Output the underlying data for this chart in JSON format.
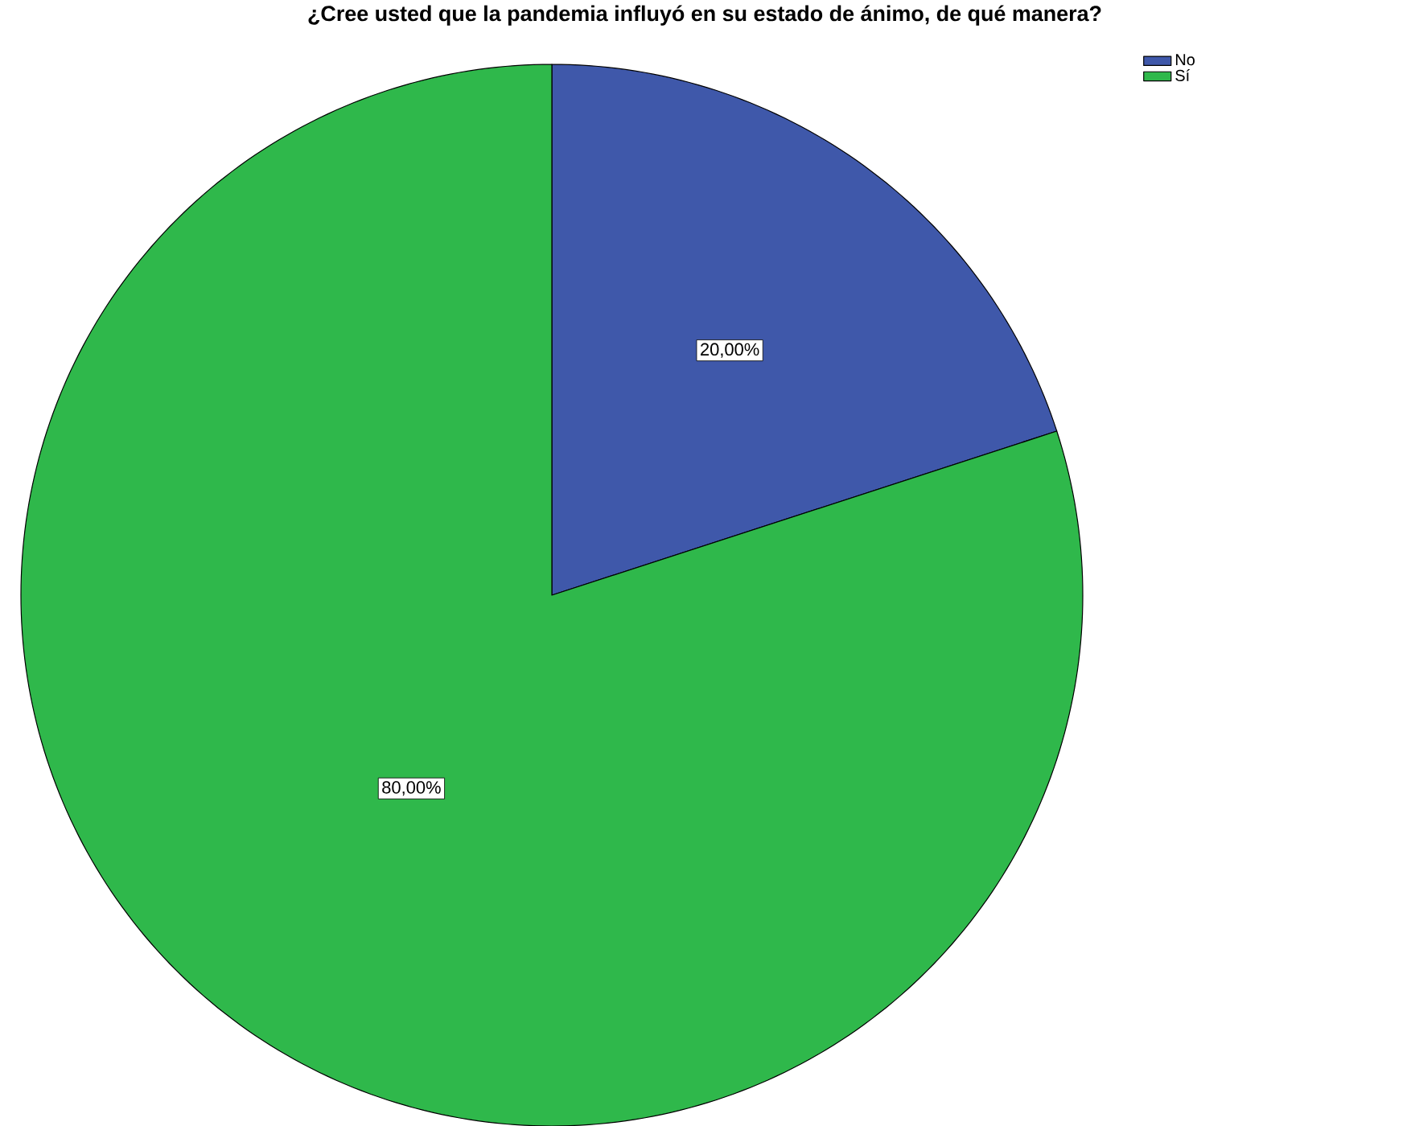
{
  "chart_data": {
    "type": "pie",
    "title": "¿Cree usted que la pandemia influyó en su estado de ánimo, de qué manera?",
    "categories": [
      "No",
      "Sí"
    ],
    "values": [
      20,
      80
    ],
    "colors": [
      "#3f58aa",
      "#2fb84b"
    ],
    "value_labels": [
      "20,00%",
      "80,00%"
    ],
    "legend": "top right"
  }
}
